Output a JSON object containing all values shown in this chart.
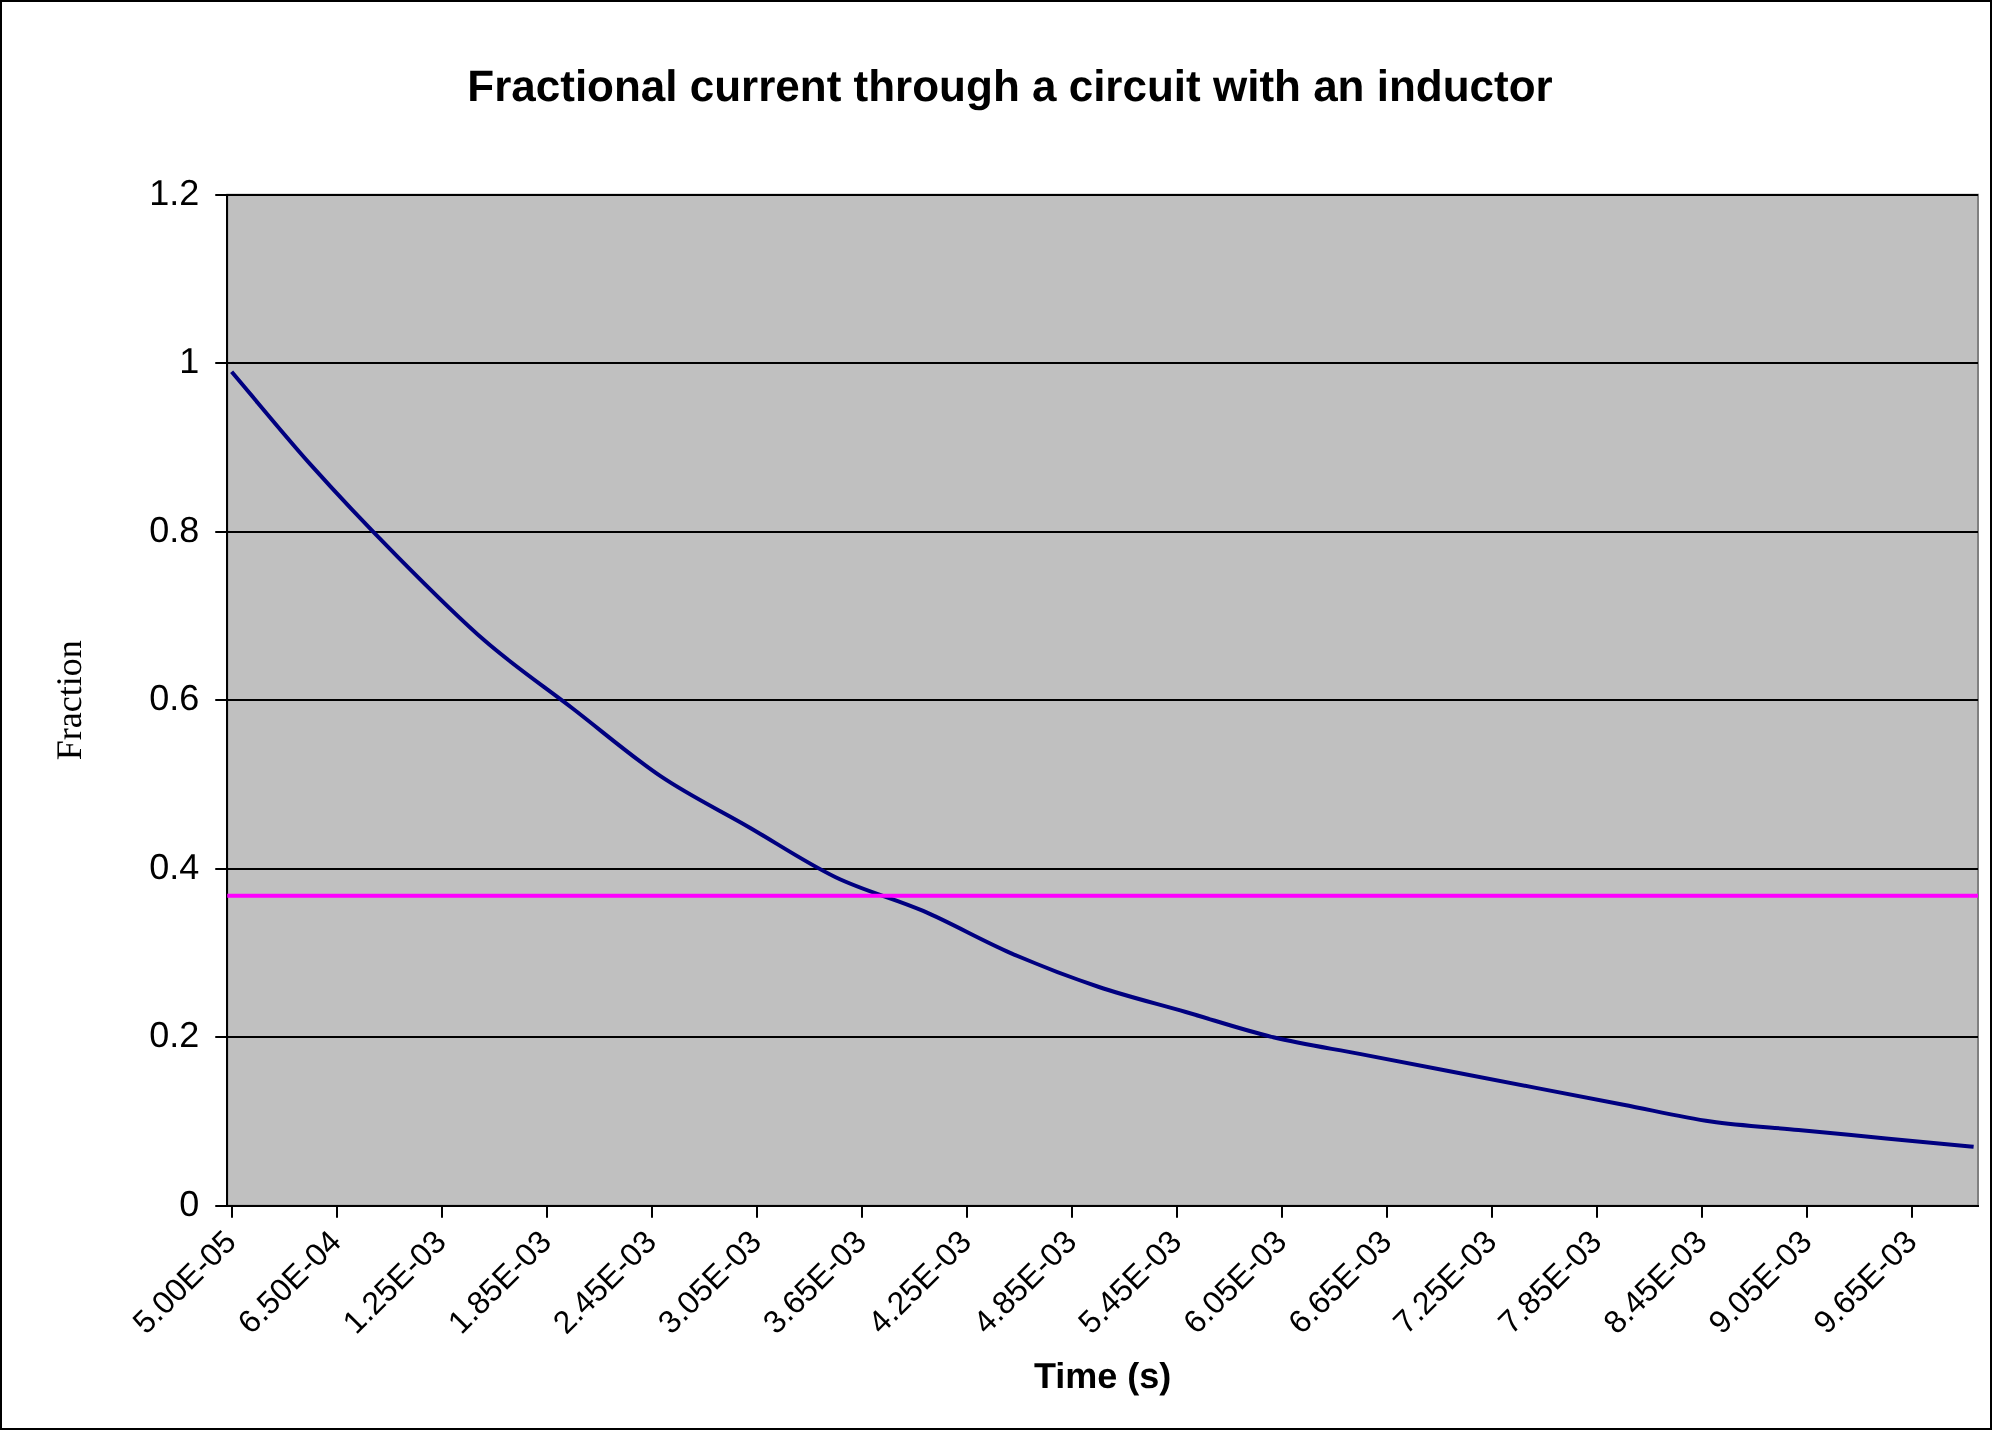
{
  "chart_data": {
    "type": "line",
    "title": "Fractional current through a circuit with an inductor",
    "xlabel": "Time (s)",
    "ylabel": "Fraction",
    "x": [
      5e-05,
      0.0005,
      0.001,
      0.0015,
      0.002,
      0.0025,
      0.003,
      0.0035,
      0.004,
      0.0045,
      0.005,
      0.0055,
      0.006,
      0.0065,
      0.007,
      0.0075,
      0.008,
      0.0085,
      0.009,
      0.0095,
      0.01
    ],
    "series": [
      {
        "color": "#000080",
        "values": [
          0.99,
          0.88,
          0.77,
          0.67,
          0.59,
          0.51,
          0.45,
          0.39,
          0.35,
          0.3,
          0.26,
          0.23,
          0.2,
          0.18,
          0.16,
          0.14,
          0.12,
          0.1,
          0.09,
          0.08,
          0.07
        ]
      }
    ],
    "xlim": [
      2.5e-05,
      0.010025
    ],
    "xticks": [
      {
        "value": 5e-05,
        "label": "5.00E-05"
      },
      {
        "value": 0.00065,
        "label": "6.50E-04"
      },
      {
        "value": 0.00125,
        "label": "1.25E-03"
      },
      {
        "value": 0.00185,
        "label": "1.85E-03"
      },
      {
        "value": 0.00245,
        "label": "2.45E-03"
      },
      {
        "value": 0.00305,
        "label": "3.05E-03"
      },
      {
        "value": 0.00365,
        "label": "3.65E-03"
      },
      {
        "value": 0.00425,
        "label": "4.25E-03"
      },
      {
        "value": 0.00485,
        "label": "4.85E-03"
      },
      {
        "value": 0.00545,
        "label": "5.45E-03"
      },
      {
        "value": 0.00605,
        "label": "6.05E-03"
      },
      {
        "value": 0.00665,
        "label": "6.65E-03"
      },
      {
        "value": 0.00725,
        "label": "7.25E-03"
      },
      {
        "value": 0.00785,
        "label": "7.85E-03"
      },
      {
        "value": 0.00845,
        "label": "8.45E-03"
      },
      {
        "value": 0.00905,
        "label": "9.05E-03"
      },
      {
        "value": 0.00965,
        "label": "9.65E-03"
      }
    ],
    "ylim": [
      0,
      1.2
    ],
    "yticks": [
      0,
      0.2,
      0.4,
      0.6,
      0.8,
      1,
      1.2
    ],
    "ref_lines": [
      {
        "axis": "y",
        "value": 0.368,
        "color": "#ff00ff"
      }
    ],
    "grid": "y",
    "legend": false,
    "marker": "none",
    "line_style": "solid"
  }
}
